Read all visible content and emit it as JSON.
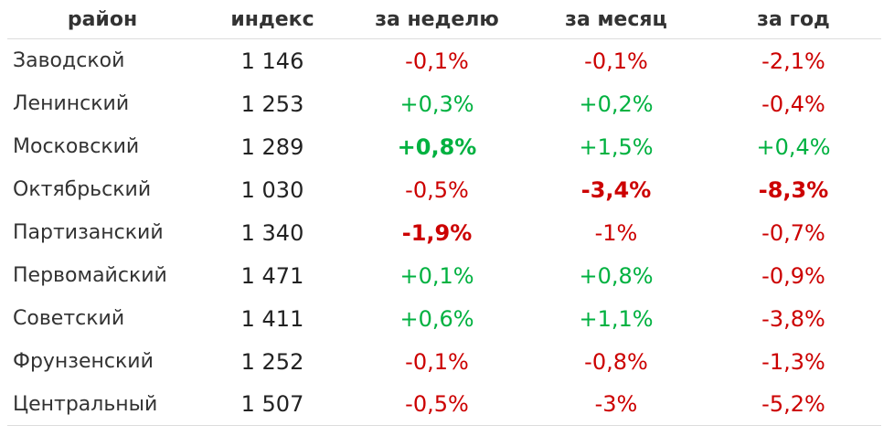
{
  "colors": {
    "negative": "#cc0000",
    "positive": "#00b140"
  },
  "headers": [
    "район",
    "индекс",
    "за неделю",
    "за месяц",
    "за год"
  ],
  "rows": [
    {
      "district": "Заводской",
      "index": "1 146",
      "week": {
        "v": "-0,1%",
        "s": "neg",
        "b": false
      },
      "month": {
        "v": "-0,1%",
        "s": "neg",
        "b": false
      },
      "year": {
        "v": "-2,1%",
        "s": "neg",
        "b": false
      }
    },
    {
      "district": "Ленинский",
      "index": "1 253",
      "week": {
        "v": "+0,3%",
        "s": "pos",
        "b": false
      },
      "month": {
        "v": "+0,2%",
        "s": "pos",
        "b": false
      },
      "year": {
        "v": "-0,4%",
        "s": "neg",
        "b": false
      }
    },
    {
      "district": "Московский",
      "index": "1 289",
      "week": {
        "v": "+0,8%",
        "s": "pos",
        "b": true
      },
      "month": {
        "v": "+1,5%",
        "s": "pos",
        "b": false
      },
      "year": {
        "v": "+0,4%",
        "s": "pos",
        "b": false
      }
    },
    {
      "district": "Октябрьский",
      "index": "1 030",
      "week": {
        "v": "-0,5%",
        "s": "neg",
        "b": false
      },
      "month": {
        "v": "-3,4%",
        "s": "neg",
        "b": true
      },
      "year": {
        "v": "-8,3%",
        "s": "neg",
        "b": true
      }
    },
    {
      "district": "Партизанский",
      "index": "1 340",
      "week": {
        "v": "-1,9%",
        "s": "neg",
        "b": true
      },
      "month": {
        "v": "-1%",
        "s": "neg",
        "b": false
      },
      "year": {
        "v": "-0,7%",
        "s": "neg",
        "b": false
      }
    },
    {
      "district": "Первомайский",
      "index": "1 471",
      "week": {
        "v": "+0,1%",
        "s": "pos",
        "b": false
      },
      "month": {
        "v": "+0,8%",
        "s": "pos",
        "b": false
      },
      "year": {
        "v": "-0,9%",
        "s": "neg",
        "b": false
      }
    },
    {
      "district": "Советский",
      "index": "1 411",
      "week": {
        "v": "+0,6%",
        "s": "pos",
        "b": false
      },
      "month": {
        "v": "+1,1%",
        "s": "pos",
        "b": false
      },
      "year": {
        "v": "-3,8%",
        "s": "neg",
        "b": false
      }
    },
    {
      "district": "Фрунзенский",
      "index": "1 252",
      "week": {
        "v": "-0,1%",
        "s": "neg",
        "b": false
      },
      "month": {
        "v": "-0,8%",
        "s": "neg",
        "b": false
      },
      "year": {
        "v": "-1,3%",
        "s": "neg",
        "b": false
      }
    },
    {
      "district": "Центральный",
      "index": "1 507",
      "week": {
        "v": "-0,5%",
        "s": "neg",
        "b": false
      },
      "month": {
        "v": "-3%",
        "s": "neg",
        "b": false
      },
      "year": {
        "v": "-5,2%",
        "s": "neg",
        "b": false
      }
    }
  ]
}
